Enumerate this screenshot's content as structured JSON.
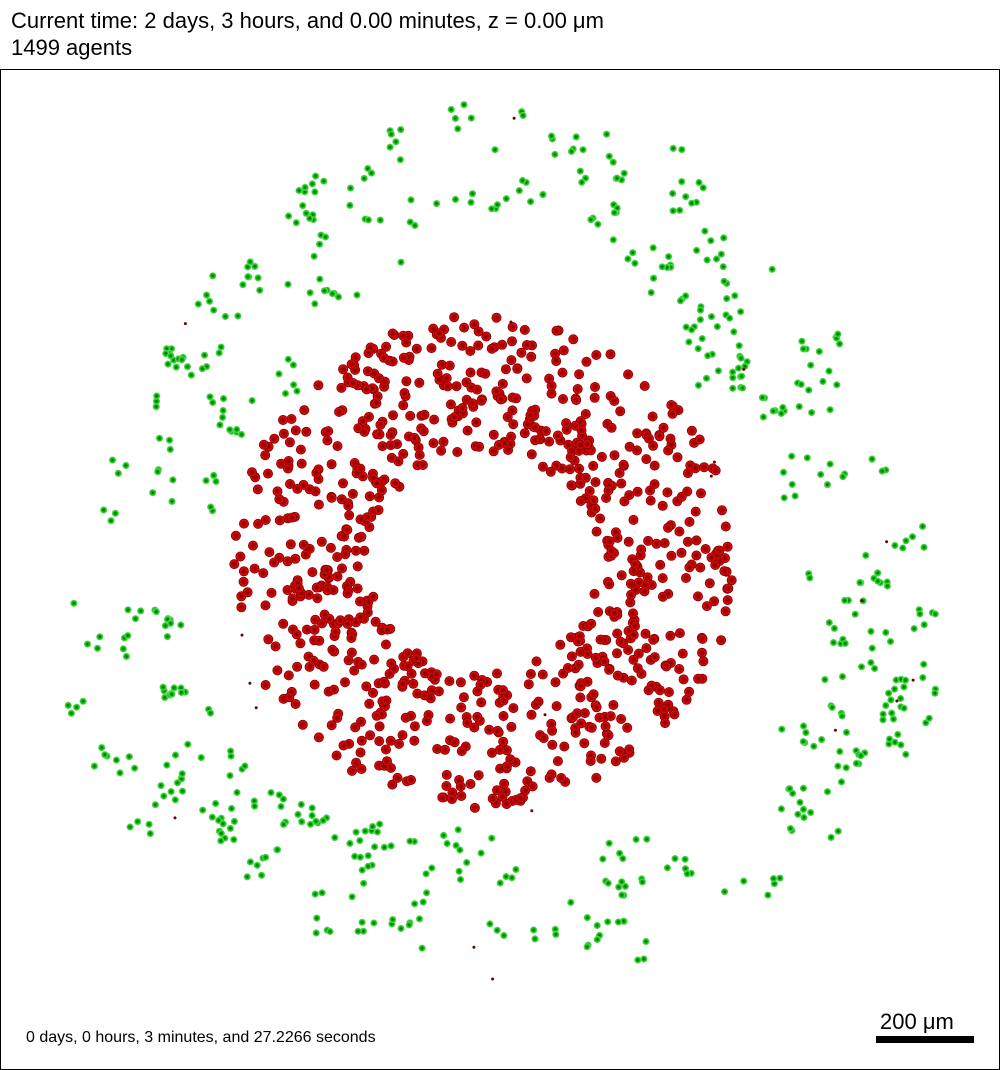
{
  "header": {
    "time_text": "Current time: 2 days, 3 hours, and 0.00 minutes, z = 0.00 μm",
    "agent_count_text": "1499 agents"
  },
  "footer": {
    "runtime_text": "0 days, 0 hours, 3 minutes, and 27.2266 seconds",
    "scale_label": "200 μm"
  },
  "colors": {
    "green_cell_fill": "#00b400",
    "green_cell_halo": "#6fe06f",
    "red_cell_fill": "#d40000",
    "red_cell_core": "#6a0000",
    "debris": "#700000"
  },
  "cell_populations": [
    {
      "name": "outer-green-ring",
      "count": 600
    },
    {
      "name": "inner-red-ring",
      "count": 880
    },
    {
      "name": "debris-dots",
      "count": 19
    }
  ]
}
